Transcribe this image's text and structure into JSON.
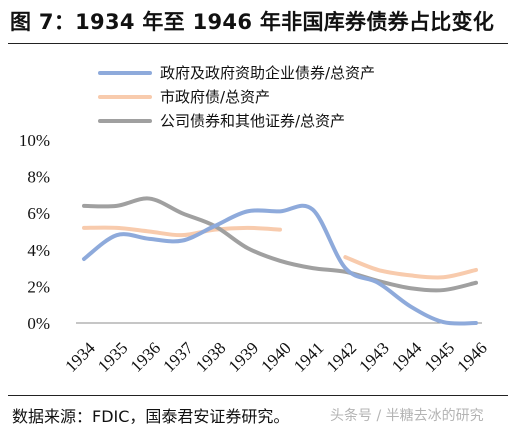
{
  "title": "图 7：1934 年至 1946 年非国库券债券占比变化",
  "source": "数据来源：FDIC，国泰君安证券研究。",
  "watermark": "头条号 / 半糖去冰的研究",
  "chart_data": {
    "type": "line",
    "title": "图 7：1934 年至 1946 年非国库券债券占比变化",
    "xlabel": "",
    "ylabel": "",
    "x": [
      "1934",
      "1935",
      "1936",
      "1937",
      "1938",
      "1939",
      "1940",
      "1941",
      "1942",
      "1943",
      "1944",
      "1945",
      "1946"
    ],
    "ylim": [
      0,
      10
    ],
    "yticks": [
      "0%",
      "2%",
      "4%",
      "6%",
      "8%",
      "10%"
    ],
    "grid": false,
    "legend_position": "top",
    "series": [
      {
        "name": "政府及政府资助企业债券/总资产",
        "color": "#8eaadb",
        "values": [
          3.5,
          4.8,
          4.6,
          4.5,
          5.3,
          6.1,
          6.1,
          6.2,
          3.0,
          2.2,
          0.9,
          0.05,
          0.0
        ]
      },
      {
        "name": "市政府债/总资产",
        "color": "#f8cbad",
        "values": [
          5.2,
          5.2,
          5.0,
          4.8,
          5.1,
          5.2,
          5.1,
          null,
          3.6,
          2.9,
          2.6,
          2.5,
          2.9
        ]
      },
      {
        "name": "公司债券和其他证券/总资产",
        "color": "#a0a0a0",
        "values": [
          6.4,
          6.4,
          6.8,
          6.0,
          5.3,
          4.1,
          3.4,
          3.0,
          2.8,
          2.3,
          1.9,
          1.8,
          2.2
        ]
      }
    ]
  }
}
